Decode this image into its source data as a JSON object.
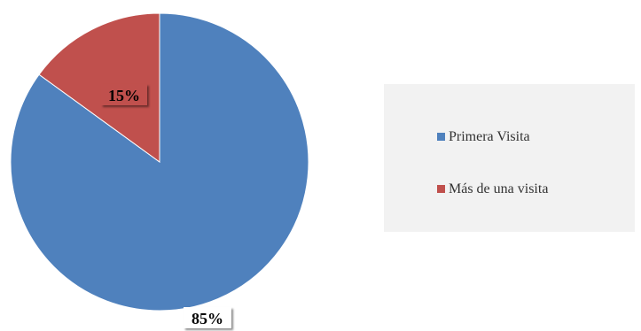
{
  "chart_data": {
    "type": "pie",
    "title": "",
    "categories": [
      "Primera Visita",
      "Más de una visita"
    ],
    "values": [
      85,
      15
    ],
    "data_labels": [
      "85%",
      "15%"
    ],
    "colors": [
      "#4f81bd",
      "#c0504d"
    ],
    "legend": {
      "placement": "right",
      "entries": [
        "Primera Visita",
        "Más de una visita"
      ]
    },
    "start_angle_deg": 0,
    "direction": "clockwise"
  }
}
